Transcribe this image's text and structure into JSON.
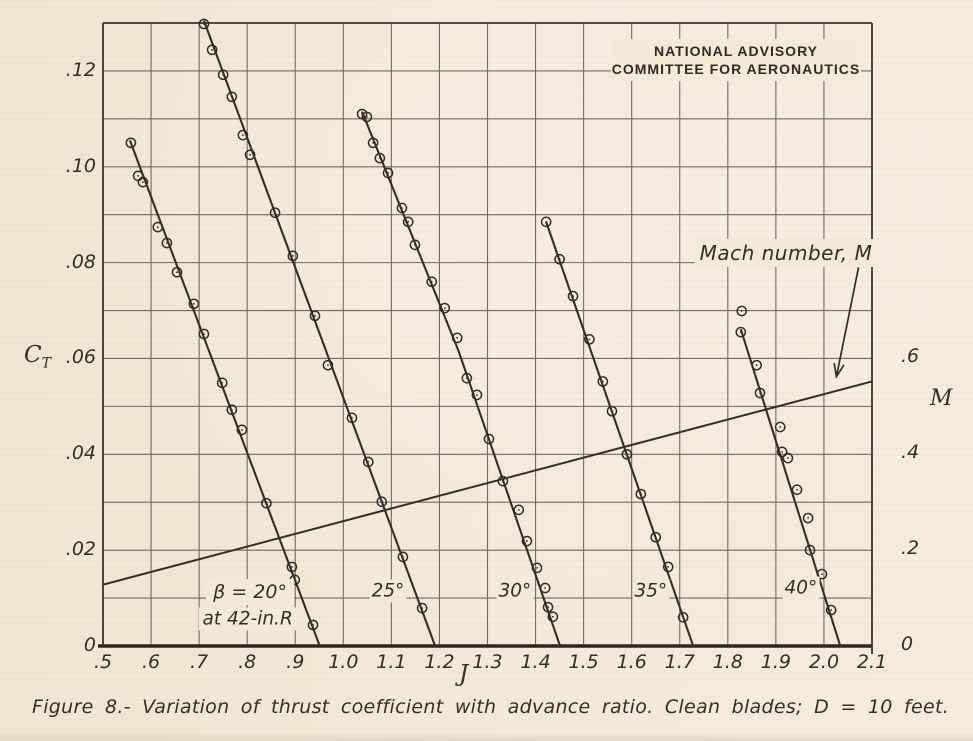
{
  "page": {
    "paper_color": "#f2e9d6",
    "ink_color": "#332e27",
    "grid_color": "#564f45"
  },
  "header": {
    "line1": "NATIONAL ADVISORY",
    "line2": "COMMITTEE FOR AERONAUTICS"
  },
  "caption": {
    "text": "Figure 8.- Variation of thrust coefficient with advance ratio. Clean blades; D = 10 feet."
  },
  "chart_data": {
    "type": "scatter",
    "title": "Figure 8.- Variation of thrust coefficient with advance ratio. Clean blades; D = 10 feet.",
    "xlabel": "J",
    "ylabel_left": "CT (thrust coefficient)",
    "ylabel_right": "M (Mach number)",
    "axis_titles": {
      "x": "J",
      "y_left_main": "C",
      "y_left_sub": "T",
      "y_right": "M"
    },
    "x_range": [
      0.5,
      2.1
    ],
    "y_left_range": [
      0,
      0.13
    ],
    "y_right_range": [
      0,
      1.3
    ],
    "x_grid_step": 0.1,
    "y_grid_step": 0.01,
    "grid": "on",
    "legend": "labels written beside each curve inside plot",
    "x_ticks": {
      "values": [
        0.5,
        0.6,
        0.7,
        0.8,
        0.9,
        1.0,
        1.1,
        1.2,
        1.3,
        1.4,
        1.5,
        1.6,
        1.7,
        1.8,
        1.9,
        2.0,
        2.1
      ],
      "labels": [
        ".5",
        ".6",
        ".7",
        ".8",
        ".9",
        "1.0",
        "1.1",
        "1.2",
        "1.3",
        "1.4",
        "1.5",
        "1.6",
        "1.7",
        "1.8",
        "1.9",
        "2.0",
        "2.1"
      ]
    },
    "y_left_ticks": {
      "values": [
        0,
        0.02,
        0.04,
        0.06,
        0.08,
        0.1,
        0.12
      ],
      "labels": [
        "0",
        ".02",
        ".04",
        ".06",
        ".08",
        ".10",
        ".12"
      ]
    },
    "y_right_ticks": {
      "values": [
        0,
        0.2,
        0.4,
        0.6
      ],
      "labels": [
        "0",
        ".2",
        ".4",
        ".6"
      ]
    },
    "series": [
      {
        "name": "beta 20 deg at 42-in. R",
        "beta_deg": 20,
        "label_line1": "β = 20°",
        "label_line2": "at 42-in.R",
        "label_at": [
          0.806,
          0.0113
        ],
        "label2_at": [
          0.801,
          0.0056
        ],
        "fair_line": [
          [
            0.556,
            0.1055
          ],
          [
            0.951,
            0
          ]
        ],
        "points": [
          [
            0.558,
            0.105
          ],
          [
            0.573,
            0.0981
          ],
          [
            0.583,
            0.0968
          ],
          [
            0.614,
            0.0874
          ],
          [
            0.633,
            0.0841
          ],
          [
            0.654,
            0.078
          ],
          [
            0.689,
            0.0714
          ],
          [
            0.71,
            0.0651
          ],
          [
            0.748,
            0.0549
          ],
          [
            0.768,
            0.0493
          ],
          [
            0.789,
            0.0451
          ],
          [
            0.84,
            0.0298
          ],
          [
            0.893,
            0.0165
          ],
          [
            0.899,
            0.0138
          ],
          [
            0.937,
            0.0044
          ]
        ]
      },
      {
        "name": "beta 25 deg",
        "beta_deg": 25,
        "label": "25°",
        "label_at": [
          1.093,
          0.0115
        ],
        "fair_line": [
          [
            0.71,
            0.1305
          ],
          [
            1.191,
            0
          ]
        ],
        "points": [
          [
            0.71,
            0.1298
          ],
          [
            0.727,
            0.1244
          ],
          [
            0.75,
            0.1192
          ],
          [
            0.768,
            0.1146
          ],
          [
            0.791,
            0.1066
          ],
          [
            0.806,
            0.1025
          ],
          [
            0.858,
            0.0904
          ],
          [
            0.895,
            0.0814
          ],
          [
            0.941,
            0.0689
          ],
          [
            0.968,
            0.0586
          ],
          [
            1.018,
            0.0476
          ],
          [
            1.052,
            0.0384
          ],
          [
            1.08,
            0.0301
          ],
          [
            1.124,
            0.0186
          ],
          [
            1.164,
            0.0079
          ]
        ]
      },
      {
        "name": "beta 30 deg",
        "beta_deg": 30,
        "label": "30°",
        "label_at": [
          1.357,
          0.0115
        ],
        "fair_line": [
          [
            1.039,
            0.1115
          ],
          [
            1.24,
            0.0615
          ],
          [
            1.451,
            0
          ]
        ],
        "points": [
          [
            1.039,
            0.111
          ],
          [
            1.049,
            0.1104
          ],
          [
            1.062,
            0.105
          ],
          [
            1.076,
            0.1018
          ],
          [
            1.093,
            0.0987
          ],
          [
            1.122,
            0.0914
          ],
          [
            1.135,
            0.0885
          ],
          [
            1.149,
            0.0837
          ],
          [
            1.184,
            0.076
          ],
          [
            1.211,
            0.0705
          ],
          [
            1.237,
            0.0643
          ],
          [
            1.257,
            0.0559
          ],
          [
            1.278,
            0.0524
          ],
          [
            1.303,
            0.0432
          ],
          [
            1.332,
            0.0344
          ],
          [
            1.365,
            0.0284
          ],
          [
            1.382,
            0.0219
          ],
          [
            1.403,
            0.0163
          ],
          [
            1.42,
            0.0121
          ],
          [
            1.426,
            0.0081
          ],
          [
            1.436,
            0.0061
          ]
        ]
      },
      {
        "name": "beta 35 deg",
        "beta_deg": 35,
        "label": "35°",
        "label_at": [
          1.64,
          0.0115
        ],
        "fair_line": [
          [
            1.422,
            0.0885
          ],
          [
            1.728,
            0
          ]
        ],
        "points": [
          [
            1.422,
            0.0885
          ],
          [
            1.45,
            0.0807
          ],
          [
            1.478,
            0.073
          ],
          [
            1.512,
            0.064
          ],
          [
            1.54,
            0.0552
          ],
          [
            1.559,
            0.049
          ],
          [
            1.59,
            0.04
          ],
          [
            1.619,
            0.0317
          ],
          [
            1.65,
            0.0227
          ],
          [
            1.676,
            0.0165
          ],
          [
            1.707,
            0.006
          ]
        ]
      },
      {
        "name": "beta 40 deg",
        "beta_deg": 40,
        "label": "40°",
        "label_at": [
          1.952,
          0.0121
        ],
        "fair_line": [
          [
            1.827,
            0.0661
          ],
          [
            2.034,
            0
          ]
        ],
        "points": [
          [
            1.829,
            0.0699
          ],
          [
            1.827,
            0.0655
          ],
          [
            1.86,
            0.0586
          ],
          [
            1.867,
            0.0528
          ],
          [
            1.909,
            0.0457
          ],
          [
            1.913,
            0.0405
          ],
          [
            1.925,
            0.0392
          ],
          [
            1.944,
            0.0326
          ],
          [
            1.967,
            0.0267
          ],
          [
            1.971,
            0.02
          ],
          [
            1.996,
            0.015
          ],
          [
            2.015,
            0.0075
          ]
        ]
      }
    ],
    "mach": {
      "label": "Mach number, M",
      "axis": "right",
      "points_JM": [
        [
          0.5,
          0.128
        ],
        [
          2.1,
          0.552
        ]
      ],
      "label_at": [
        1.921,
        0.082
      ],
      "arrow_from": [
        2.072,
        0.079
      ],
      "arrow_to": [
        2.026,
        0.0562
      ]
    }
  }
}
